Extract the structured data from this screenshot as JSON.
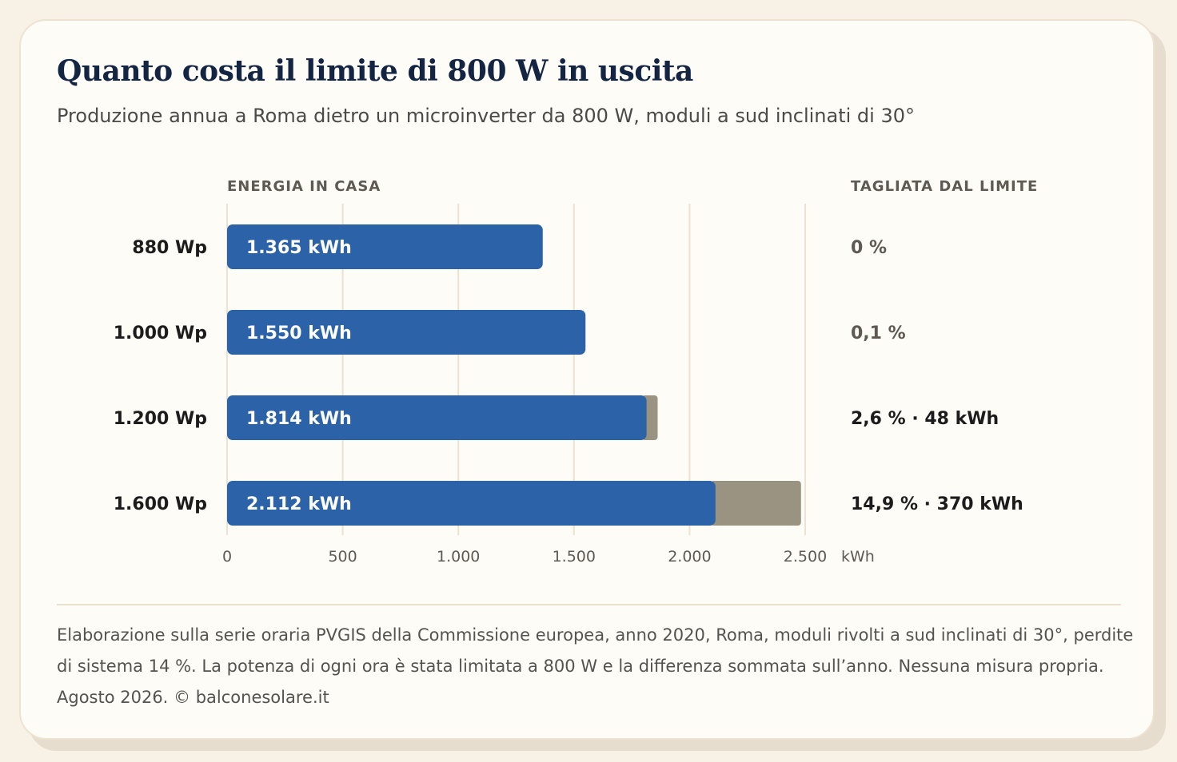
{
  "title": "Quanto costa il limite di 800 W in uscita",
  "subtitle": "Produzione annua a Roma dietro un microinverter da 800 W, moduli a sud inclinati di 30°",
  "colors": {
    "delivered": "#2b62a8",
    "clipped": "#9a9381",
    "grid": "#ebe2d1",
    "text_dark": "#1c1c1c",
    "text_muted": "#5e5a53"
  },
  "chart_data": {
    "type": "bar",
    "orientation": "horizontal",
    "stacked": true,
    "left_column_label": "ENERGIA IN CASA",
    "right_column_label": "TAGLIATA DAL LIMITE",
    "categories": [
      "880 Wp",
      "1.000 Wp",
      "1.200 Wp",
      "1.600 Wp"
    ],
    "series": [
      {
        "name": "",
        "values": [
          1365,
          1550,
          1814,
          2112
        ],
        "labels": [
          "1.365 kWh",
          "1.550 kWh",
          "1.814 kWh",
          "2.112 kWh"
        ]
      },
      {
        "name": "",
        "values": [
          0,
          1.5,
          48,
          370
        ]
      }
    ],
    "clipped_labels": [
      "0 %",
      "0,1 %",
      "2,6 % · 48 kWh",
      "14,9 % · 370 kWh"
    ],
    "xlim": [
      0,
      2500
    ],
    "xticks": [
      0,
      500,
      1000,
      1500,
      2000,
      2500
    ],
    "xtick_labels": [
      "0",
      "500",
      "1.000",
      "1.500",
      "2.000",
      "2.500"
    ],
    "xunit": "kWh",
    "grid": true
  },
  "footnote": [
    "Elaborazione sulla serie oraria PVGIS della Commissione europea, anno 2020, Roma, moduli rivolti a sud inclinati di 30°, perdite",
    "di sistema 14 %. La potenza di ogni ora è stata limitata a 800 W e la differenza sommata sull’anno. Nessuna misura propria.",
    "Agosto 2026. © balconesolare.it"
  ]
}
